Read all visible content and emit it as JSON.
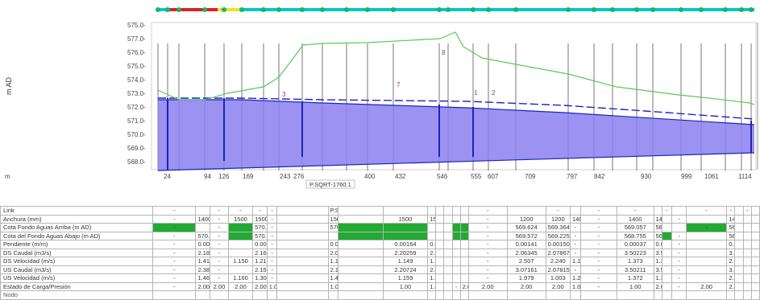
{
  "y_axis": {
    "label": "m AD",
    "ticks": [
      "575.0-",
      "577.0-",
      "576.0-",
      "575.0-",
      "574.0-",
      "573.0-",
      "572.0-",
      "571.0-",
      "570.0-",
      "569.0-",
      "568.0-"
    ]
  },
  "profile": {
    "marker_labels": [
      "8",
      "7",
      "3",
      "1",
      "2"
    ],
    "pipe_label": "P.SQRT-1760.1",
    "station_labels": [
      "m",
      "24",
      "94",
      "126",
      "169",
      "243",
      "276",
      "400",
      "432",
      "546",
      "555",
      "607",
      "709",
      "797",
      "842",
      "930",
      "999",
      "1061",
      "1114"
    ]
  },
  "colors": {
    "ground_line": "#55cc55",
    "water_fill": "#8a7ff0",
    "hydraulic_grade": "#1e24b8",
    "node_bar": "#00c8c8",
    "node_dot": "#19b46b",
    "highlight_red": "#e02020",
    "highlight_yellow": "#f2e21a",
    "cell_highlight": "#22aa33"
  },
  "table": {
    "columns": 30,
    "rows": [
      {
        "label": "Link",
        "cells": [
          "-",
          "",
          "-",
          "-",
          "-",
          "-",
          "",
          "P.SQRT-1760.1",
          "",
          "",
          "",
          "",
          "",
          "",
          "",
          "-",
          "",
          "-",
          "",
          "-",
          "-",
          "",
          "-",
          "",
          "-",
          "-",
          "",
          "-",
          "",
          "-"
        ]
      },
      {
        "label": "Anchura (mm)",
        "cells": [
          "-",
          "1400",
          "-",
          "1500",
          "1500",
          "-",
          "",
          "1500",
          "",
          "1500",
          "1500",
          "",
          "",
          "",
          "",
          "-",
          "1200",
          "1200",
          "1400",
          "-",
          "1400",
          "1400",
          "",
          "-",
          "",
          "1400",
          "",
          "",
          "",
          ""
        ]
      },
      {
        "label": "Cota Fondo Aguas Arriba (m AD)",
        "cells": [
          "-",
          "",
          "-",
          "",
          "570.557",
          "-",
          "",
          "570.364",
          "",
          "",
          "",
          "",
          "",
          "",
          "",
          "-",
          "569.624",
          "569.364",
          "-",
          "-",
          "569.057",
          "568.757",
          "",
          "",
          "-",
          "568.5",
          "",
          "",
          "",
          ""
        ]
      },
      {
        "label": "Cota del Fondo Aguas Abajo (m AD)",
        "cells": [
          "-",
          "570.573",
          "-",
          "",
          "570.512",
          "-",
          "",
          "",
          "",
          "",
          "",
          "",
          "",
          "",
          "",
          "-",
          "569.572",
          "569.225",
          "-",
          "-",
          "568.755",
          "568.529",
          "",
          "-",
          "",
          "568.4",
          "",
          "",
          "",
          ""
        ]
      },
      {
        "label": "Pendiente (m/m)",
        "cells": [
          "-",
          "0.00111",
          "-",
          "",
          "0.00090",
          "-",
          "",
          "0.00164",
          "",
          "0.00164",
          "0.00164",
          "",
          "",
          "",
          "",
          "-",
          "0.00141",
          "0.00150",
          "-",
          "-",
          "0.00037",
          "0.00058",
          "",
          "-",
          "",
          "0.00125",
          "",
          "",
          "",
          ""
        ]
      },
      {
        "label": "DS Caudal (m3/s)",
        "cells": [
          "-",
          "2.18973",
          "-",
          "",
          "2.16226",
          "-",
          "",
          "2.08970",
          "",
          "2.20259",
          "2.25938",
          "",
          "",
          "",
          "",
          "-",
          "2.06345",
          "2.07867",
          "-",
          "-",
          "3.50223",
          "3.51330",
          "",
          "-",
          "",
          "3.55024",
          "",
          "",
          "",
          ""
        ]
      },
      {
        "label": "DS Velocidad (m/s)",
        "cells": [
          "-",
          "1.412",
          "-",
          "1.150",
          "1.212",
          "-",
          "",
          "1.103",
          "",
          "1.149",
          "1.197",
          "",
          "",
          "",
          "",
          "-",
          "2.507",
          "2.240",
          "1.155",
          "-",
          "1.373",
          "1.379",
          "",
          "-",
          "",
          "2.225",
          "",
          "",
          "",
          ""
        ]
      },
      {
        "label": "US Caudal (m3/s)",
        "cells": [
          "-",
          "2.38172",
          "-",
          "",
          "2.15913",
          "-",
          "",
          "2.10001",
          "",
          "2.20724",
          "2.33428",
          "",
          "",
          "",
          "",
          "-",
          "3.07161",
          "2.07815",
          "-",
          "-",
          "3.50211",
          "3.51315",
          "",
          "-",
          "",
          "3.55033",
          "",
          "",
          "",
          ""
        ]
      },
      {
        "label": "US Velocidad (m/s)",
        "cells": [
          "-",
          "1.465",
          "-",
          "1.160",
          "1.300",
          "-",
          "",
          "1.400",
          "",
          "1.159",
          "1.202",
          "",
          "",
          "",
          "",
          "-",
          "1.979",
          "1.003",
          "1.280",
          "-",
          "1.372",
          "1.374",
          "",
          "-",
          "",
          "2.214",
          "",
          "",
          "",
          ""
        ]
      },
      {
        "label": "Estado de Carga/Presión",
        "cells": [
          "-",
          "2.00",
          "2.00",
          "2.00",
          "2.00",
          "1.00",
          "",
          "1.00",
          "",
          "1.00",
          "1.00",
          "",
          "",
          "-",
          "2.00",
          "2.00",
          "2.00",
          "2.00",
          "1.00",
          "-",
          "1.00",
          "2.00",
          "",
          "-",
          "2.00",
          "2.00",
          "",
          "",
          "",
          ""
        ]
      },
      {
        "label": "Nodo",
        "cells": [
          "",
          "",
          "",
          "",
          "",
          "",
          "",
          "",
          "",
          "",
          "",
          "",
          "",
          "",
          "",
          "",
          "",
          "",
          "",
          "",
          "",
          "",
          "",
          "",
          "",
          "",
          "",
          "",
          "",
          ""
        ]
      }
    ]
  }
}
